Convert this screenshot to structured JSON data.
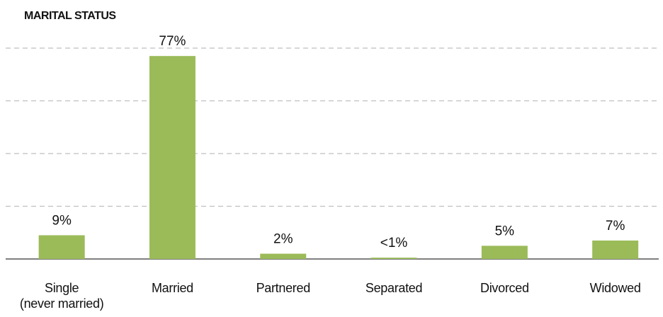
{
  "chart_data": {
    "type": "bar",
    "title": "MARITAL STATUS",
    "categories": [
      "Single\n(never married)",
      "Married",
      "Partnered",
      "Separated",
      "Divorced",
      "Widowed"
    ],
    "values": [
      9,
      77,
      2,
      0.5,
      5,
      7
    ],
    "value_labels": [
      "9%",
      "77%",
      "2%",
      "<1%",
      "5%",
      "7%"
    ],
    "color": "#9bbb59",
    "ylim": [
      0,
      80
    ],
    "yticks": [
      0,
      20,
      40,
      60,
      80
    ],
    "grid": true
  }
}
